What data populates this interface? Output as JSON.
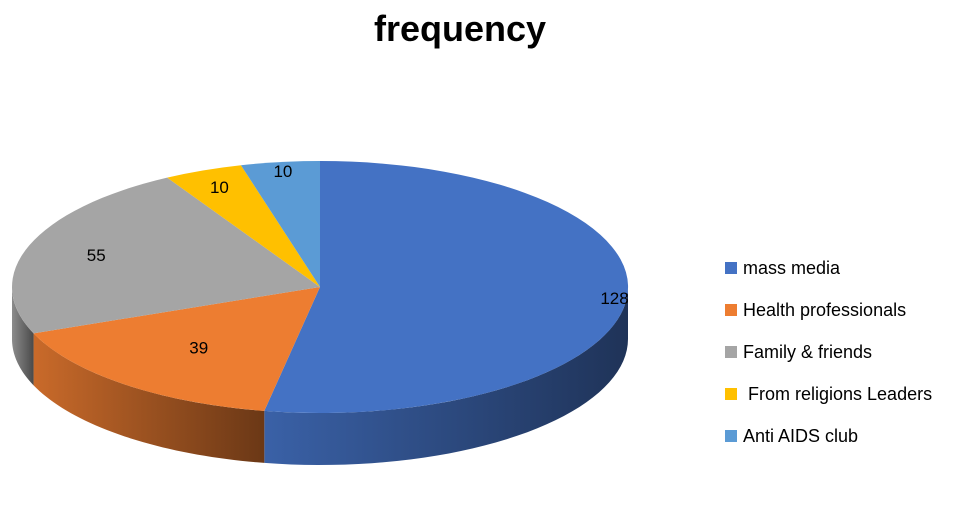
{
  "chart_data": {
    "type": "pie",
    "title": "frequency",
    "categories": [
      "mass media",
      "Health professionals",
      "Family & friends",
      "From religions Leaders",
      "Anti AIDS club"
    ],
    "values": [
      128,
      39,
      55,
      10,
      10
    ],
    "data_labels": [
      "128",
      "39",
      "55",
      "10",
      "10"
    ],
    "legend_labels": [
      "mass media",
      "Health professionals",
      "Family & friends",
      " From religions Leaders",
      "Anti AIDS club"
    ],
    "colors": [
      "#4472C4",
      "#ED7D31",
      "#A5A5A5",
      "#FFC000",
      "#5B9BD5"
    ],
    "legend_position": "right",
    "style": "3d"
  }
}
